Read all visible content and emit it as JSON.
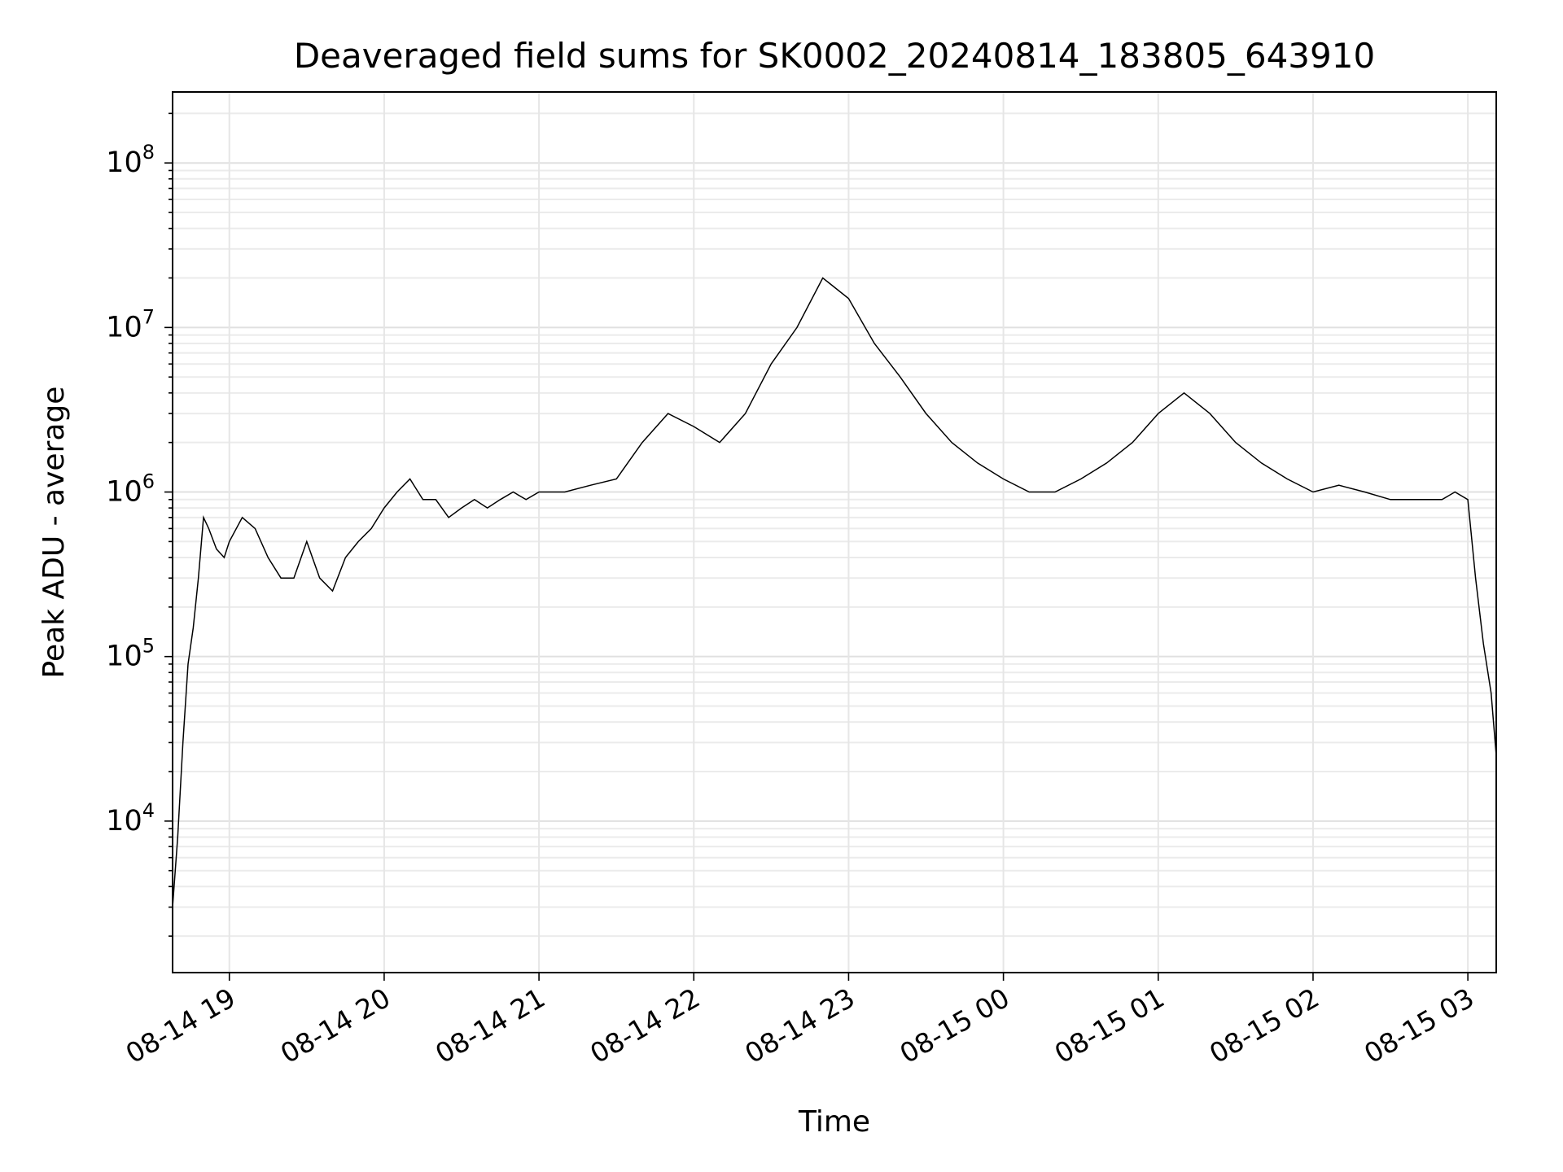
{
  "chart_data": {
    "type": "line",
    "title": "Deaveraged field sums for SK0002_20240814_183805_643910",
    "xlabel": "Time",
    "ylabel": "Peak ADU - average",
    "yscale": "log",
    "xlim": [
      "2024-08-14 18:38",
      "2024-08-15 03:11"
    ],
    "ylim": [
      1200,
      270000000
    ],
    "grid": true,
    "x_ticks": [
      "08-14 19",
      "08-14 20",
      "08-14 21",
      "08-14 22",
      "08-14 23",
      "08-15 00",
      "08-15 01",
      "08-15 02",
      "08-15 03"
    ],
    "y_ticks": [
      {
        "base": "10",
        "exp": "4",
        "value": 10000
      },
      {
        "base": "10",
        "exp": "5",
        "value": 100000
      },
      {
        "base": "10",
        "exp": "6",
        "value": 1000000
      },
      {
        "base": "10",
        "exp": "7",
        "value": 10000000
      },
      {
        "base": "10",
        "exp": "8",
        "value": 100000000
      }
    ],
    "series": [
      {
        "color": "#000000",
        "x": [
          "2024-08-14 18:38",
          "2024-08-14 18:40",
          "2024-08-14 18:42",
          "2024-08-14 18:44",
          "2024-08-14 18:46",
          "2024-08-14 18:48",
          "2024-08-14 18:50",
          "2024-08-14 18:52",
          "2024-08-14 18:55",
          "2024-08-14 18:58",
          "2024-08-14 19:00",
          "2024-08-14 19:05",
          "2024-08-14 19:10",
          "2024-08-14 19:15",
          "2024-08-14 19:20",
          "2024-08-14 19:25",
          "2024-08-14 19:30",
          "2024-08-14 19:35",
          "2024-08-14 19:40",
          "2024-08-14 19:45",
          "2024-08-14 19:50",
          "2024-08-14 19:55",
          "2024-08-14 20:00",
          "2024-08-14 20:05",
          "2024-08-14 20:10",
          "2024-08-14 20:15",
          "2024-08-14 20:20",
          "2024-08-14 20:25",
          "2024-08-14 20:30",
          "2024-08-14 20:35",
          "2024-08-14 20:40",
          "2024-08-14 20:45",
          "2024-08-14 20:50",
          "2024-08-14 20:55",
          "2024-08-14 21:00",
          "2024-08-14 21:10",
          "2024-08-14 21:20",
          "2024-08-14 21:30",
          "2024-08-14 21:40",
          "2024-08-14 21:50",
          "2024-08-14 22:00",
          "2024-08-14 22:10",
          "2024-08-14 22:20",
          "2024-08-14 22:30",
          "2024-08-14 22:40",
          "2024-08-14 22:50",
          "2024-08-14 23:00",
          "2024-08-14 23:10",
          "2024-08-14 23:20",
          "2024-08-14 23:30",
          "2024-08-14 23:40",
          "2024-08-14 23:50",
          "2024-08-15 00:00",
          "2024-08-15 00:10",
          "2024-08-15 00:20",
          "2024-08-15 00:30",
          "2024-08-15 00:40",
          "2024-08-15 00:50",
          "2024-08-15 01:00",
          "2024-08-15 01:10",
          "2024-08-15 01:20",
          "2024-08-15 01:30",
          "2024-08-15 01:40",
          "2024-08-15 01:50",
          "2024-08-15 02:00",
          "2024-08-15 02:10",
          "2024-08-15 02:20",
          "2024-08-15 02:30",
          "2024-08-15 02:40",
          "2024-08-15 02:50",
          "2024-08-15 02:55",
          "2024-08-15 03:00",
          "2024-08-15 03:03",
          "2024-08-15 03:06",
          "2024-08-15 03:09",
          "2024-08-15 03:11"
        ],
        "y": [
          3000,
          8000,
          30000,
          90000,
          150000,
          300000,
          700000,
          600000,
          450000,
          400000,
          500000,
          700000,
          600000,
          400000,
          300000,
          300000,
          500000,
          300000,
          250000,
          400000,
          500000,
          600000,
          800000,
          1000000,
          1200000,
          900000,
          900000,
          700000,
          800000,
          900000,
          800000,
          900000,
          1000000,
          900000,
          1000000,
          1000000,
          1100000,
          1200000,
          2000000,
          3000000,
          2500000,
          2000000,
          3000000,
          6000000,
          10000000,
          20000000,
          15000000,
          8000000,
          5000000,
          3000000,
          2000000,
          1500000,
          1200000,
          1000000,
          1000000,
          1200000,
          1500000,
          2000000,
          3000000,
          4000000,
          3000000,
          2000000,
          1500000,
          1200000,
          1000000,
          1100000,
          1000000,
          900000,
          900000,
          900000,
          1000000,
          900000,
          300000,
          120000,
          60000,
          25000
        ]
      }
    ]
  }
}
